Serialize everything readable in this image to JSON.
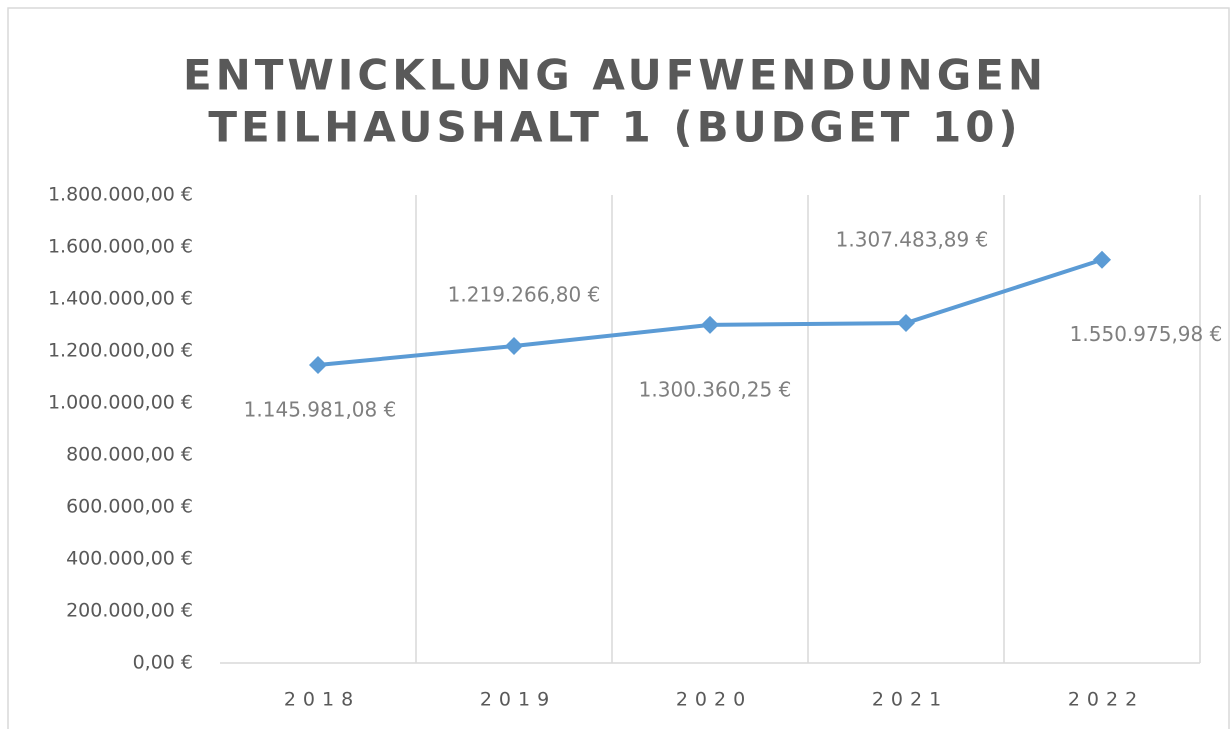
{
  "chart_data": {
    "type": "line",
    "title": [
      "ENTWICKLUNG AUFWENDUNGEN",
      "TEILHAUSHALT 1 (BUDGET 10)"
    ],
    "categories": [
      "2018",
      "2019",
      "2020",
      "2021",
      "2022"
    ],
    "series": [
      {
        "name": "Aufwendungen",
        "color": "#5b9bd5",
        "values": [
          1145981.08,
          1219266.8,
          1300360.25,
          1307483.89,
          1550975.98
        ],
        "value_labels": [
          "1.145.981,08 €",
          "1.219.266,80 €",
          "1.300.360,25 €",
          "1.307.483,89 €",
          "1.550.975,98 €"
        ]
      }
    ],
    "ylim": [
      0,
      1800000
    ],
    "yticks": [
      {
        "value": 0,
        "label": "0,00 €"
      },
      {
        "value": 200000,
        "label": "200.000,00 €"
      },
      {
        "value": 400000,
        "label": "400.000,00 €"
      },
      {
        "value": 600000,
        "label": "600.000,00 €"
      },
      {
        "value": 800000,
        "label": "800.000,00 €"
      },
      {
        "value": 1000000,
        "label": "1.000.000,00 €"
      },
      {
        "value": 1200000,
        "label": "1.200.000,00 €"
      },
      {
        "value": 1400000,
        "label": "1.400.000,00 €"
      },
      {
        "value": 1600000,
        "label": "1.600.000,00 €"
      },
      {
        "value": 1800000,
        "label": "1.800.000,00 €"
      }
    ],
    "grid": "x"
  }
}
